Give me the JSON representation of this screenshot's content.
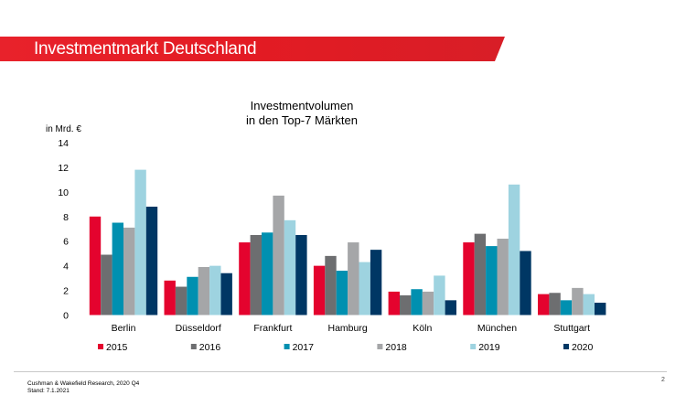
{
  "header": {
    "title": "Investmentmarkt Deutschland",
    "color": "#e31b23"
  },
  "footer": {
    "source": "Cushman & Wakefield Research, 2020 Q4",
    "date": "Stand: 7.1.2021",
    "page": "2"
  },
  "chart_data": {
    "type": "bar",
    "title_line1": "Investmentvolumen",
    "title_line2": "in den Top-7 Märkten",
    "ylabel": "in Mrd. €",
    "ylim": [
      0,
      14
    ],
    "yticks": [
      0,
      2,
      4,
      6,
      8,
      10,
      12,
      14
    ],
    "grid": false,
    "legend": "bottom",
    "categories": [
      "Berlin",
      "Düsseldorf",
      "Frankfurt",
      "Hamburg",
      "Köln",
      "München",
      "Stuttgart"
    ],
    "series": [
      {
        "name": "2015",
        "color": "#e4032e",
        "values": [
          8.0,
          2.8,
          5.9,
          4.0,
          1.9,
          5.9,
          1.7
        ]
      },
      {
        "name": "2016",
        "color": "#6d6e70",
        "values": [
          4.9,
          2.3,
          6.5,
          4.8,
          1.6,
          6.6,
          1.8
        ]
      },
      {
        "name": "2017",
        "color": "#0090b0",
        "values": [
          7.5,
          3.1,
          6.7,
          3.6,
          2.1,
          5.6,
          1.2
        ]
      },
      {
        "name": "2018",
        "color": "#a5a6a8",
        "values": [
          7.1,
          3.9,
          9.7,
          5.9,
          1.9,
          6.2,
          2.2
        ]
      },
      {
        "name": "2019",
        "color": "#9ed3e0",
        "values": [
          11.8,
          4.0,
          7.7,
          4.3,
          3.2,
          10.6,
          1.7
        ]
      },
      {
        "name": "2020",
        "color": "#003764",
        "values": [
          8.8,
          3.4,
          6.5,
          5.3,
          1.2,
          5.2,
          1.0
        ]
      }
    ]
  }
}
